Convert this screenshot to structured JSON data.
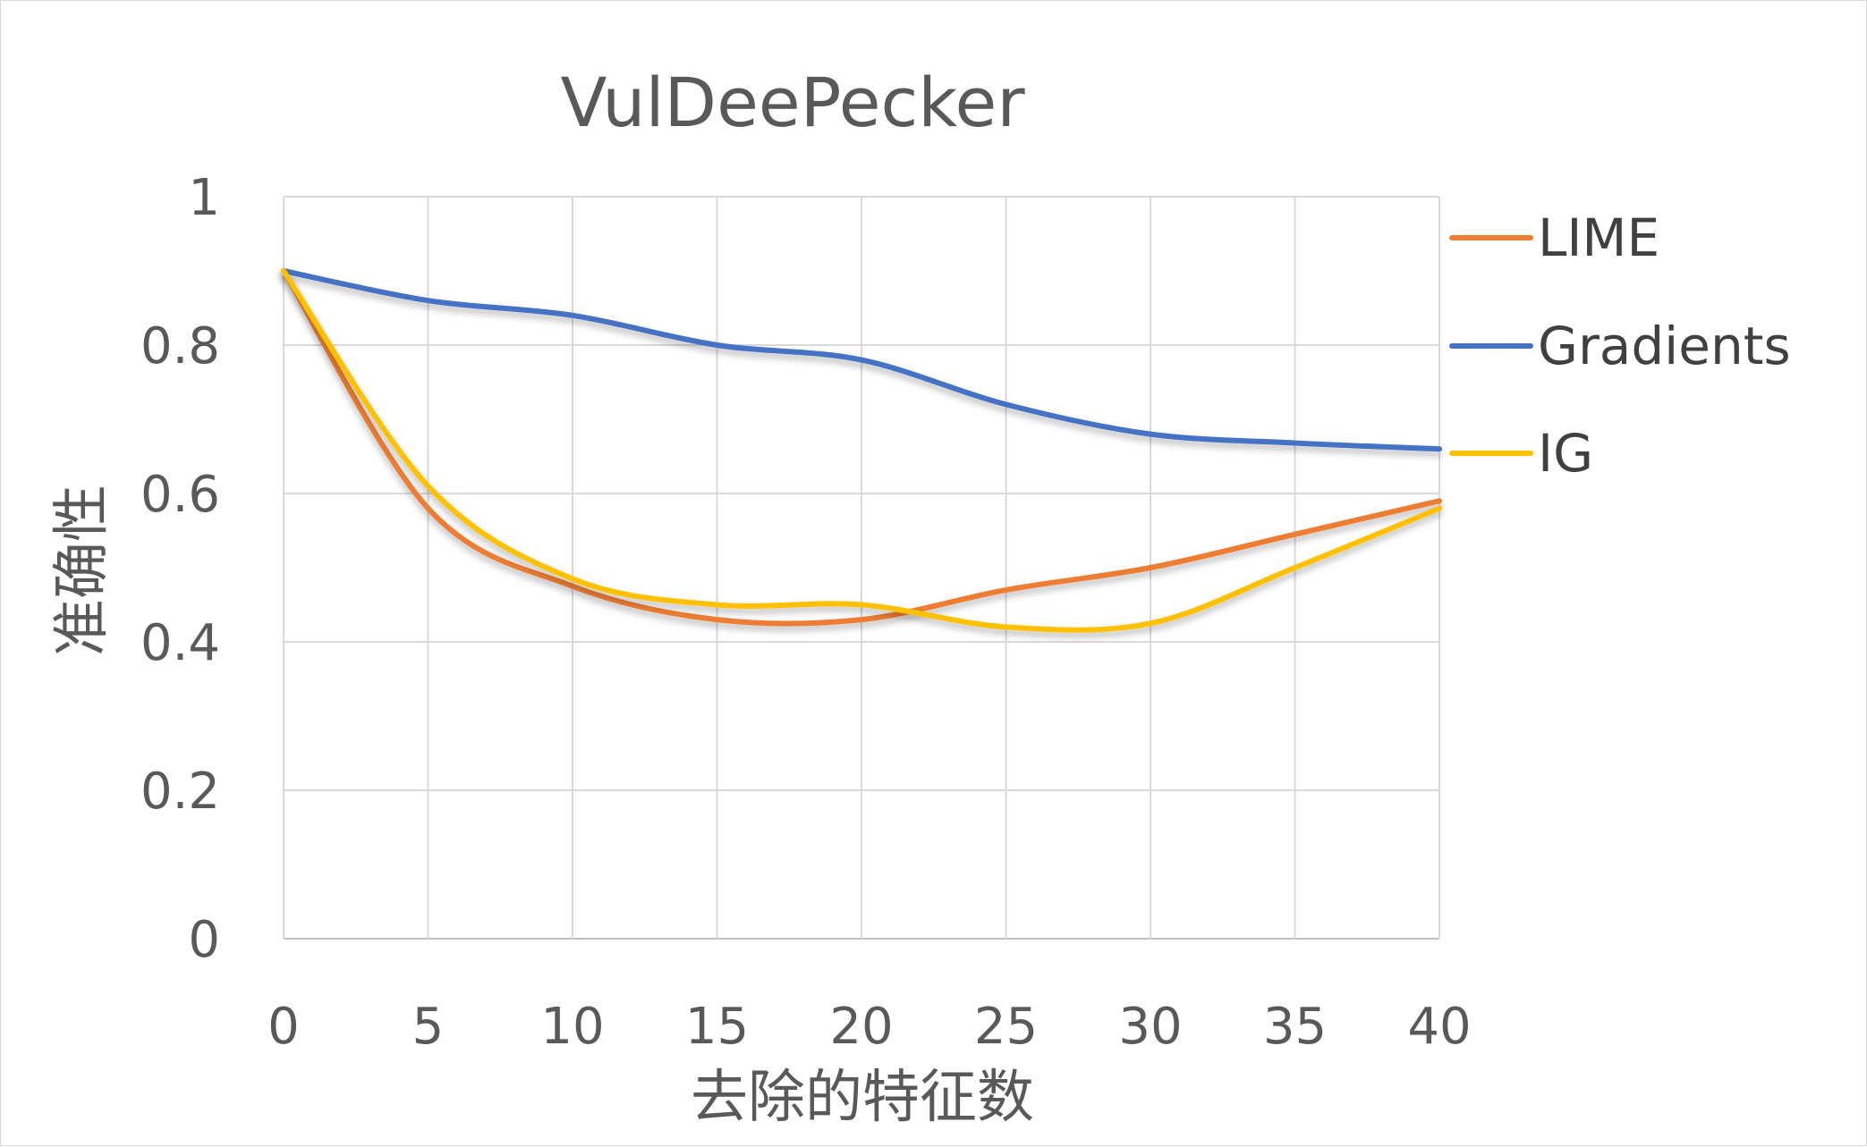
{
  "chart_data": {
    "type": "line",
    "title": "VulDeePecker",
    "xlabel": "去除的特征数",
    "ylabel": "准确性",
    "x": [
      0,
      5,
      10,
      15,
      20,
      25,
      30,
      35,
      40
    ],
    "xticks": [
      "0",
      "5",
      "10",
      "15",
      "20",
      "25",
      "30",
      "35",
      "40"
    ],
    "yticks": [
      "0",
      "0.2",
      "0.4",
      "0.6",
      "0.8",
      "1"
    ],
    "xlim": [
      0,
      40
    ],
    "ylim": [
      0,
      1
    ],
    "grid": true,
    "legend": "right",
    "series": [
      {
        "name": "LIME",
        "color": "#ED7D31",
        "values": [
          0.9,
          0.58,
          0.475,
          0.43,
          0.43,
          0.47,
          0.5,
          0.545,
          0.59
        ]
      },
      {
        "name": "Gradients",
        "color": "#4472C4",
        "values": [
          0.9,
          0.86,
          0.84,
          0.8,
          0.78,
          0.72,
          0.68,
          0.668,
          0.66
        ]
      },
      {
        "name": "IG",
        "color": "#FFC000",
        "values": [
          0.9,
          0.61,
          0.485,
          0.45,
          0.45,
          0.42,
          0.425,
          0.5,
          0.58
        ]
      }
    ]
  }
}
